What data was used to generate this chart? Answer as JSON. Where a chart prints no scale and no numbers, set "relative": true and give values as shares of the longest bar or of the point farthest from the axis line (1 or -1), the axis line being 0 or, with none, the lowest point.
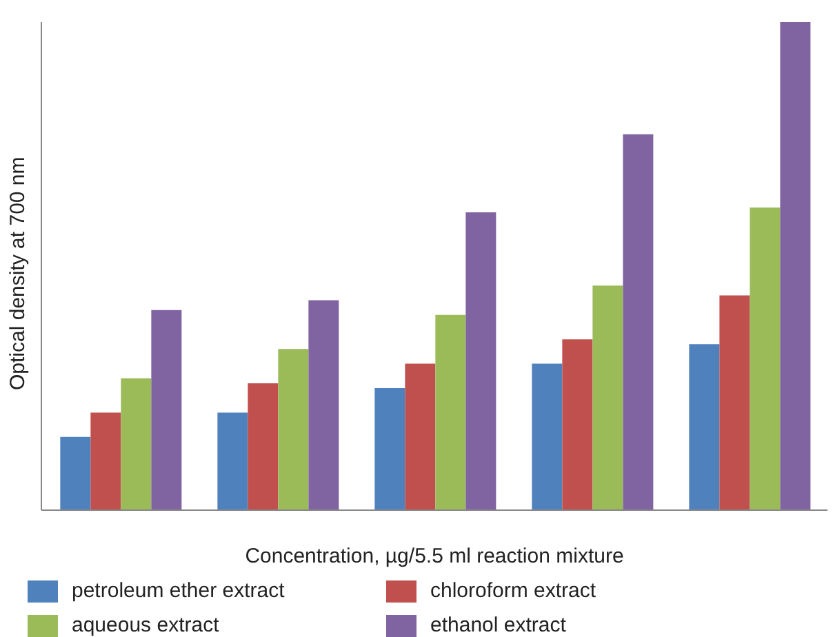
{
  "chart_data": {
    "type": "bar",
    "relative": true,
    "xlabel": "Concentration, µg/5.5 ml reaction mixture",
    "ylabel": "Optical density at 700 nm",
    "categories": [
      null,
      null,
      null,
      null,
      null
    ],
    "legend": "bottom",
    "grid": false,
    "series": [
      {
        "name": "petroleum ether extract",
        "color": "#4f81bd",
        "values": [
          0.15,
          0.2,
          0.25,
          0.3,
          0.34
        ]
      },
      {
        "name": "chloroform extract",
        "color": "#c0504d",
        "values": [
          0.2,
          0.26,
          0.3,
          0.35,
          0.44
        ]
      },
      {
        "name": "aqueous extract",
        "color": "#9bbb59",
        "values": [
          0.27,
          0.33,
          0.4,
          0.46,
          0.62
        ]
      },
      {
        "name": "ethanol extract",
        "color": "#8064a2",
        "values": [
          0.41,
          0.43,
          0.61,
          0.77,
          1
        ]
      }
    ]
  }
}
